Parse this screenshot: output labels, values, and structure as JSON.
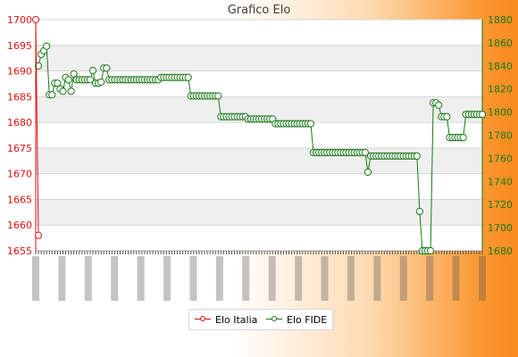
{
  "chart_data": {
    "type": "line",
    "title": "Grafico Elo",
    "xlabel": "",
    "ylabel_left": "",
    "ylabel_right": "",
    "ylim_left": [
      1655,
      1700
    ],
    "yticks_left": [
      1655,
      1660,
      1665,
      1670,
      1675,
      1680,
      1685,
      1690,
      1695,
      1700
    ],
    "ylim_right": [
      1680,
      1880
    ],
    "yticks_right": [
      1680,
      1700,
      1720,
      1740,
      1760,
      1780,
      1800,
      1820,
      1840,
      1860,
      1880
    ],
    "grid": true,
    "legend_position": "bottom",
    "n_points": 165,
    "series": [
      {
        "name": "Elo Italia",
        "axis": "left",
        "color": "#e01010",
        "points": [
          [
            0,
            1700
          ],
          [
            1,
            1658
          ]
        ]
      },
      {
        "name": "Elo FIDE",
        "axis": "right",
        "color": "#1a7a1a",
        "points": [
          [
            1,
            1840
          ],
          [
            2,
            1850
          ],
          [
            3,
            1853
          ],
          [
            4,
            1857
          ],
          [
            5,
            1815
          ],
          [
            6,
            1815
          ],
          [
            7,
            1825
          ],
          [
            8,
            1825
          ],
          [
            9,
            1820
          ],
          [
            10,
            1818
          ],
          [
            11,
            1830
          ],
          [
            12,
            1828
          ],
          [
            13,
            1818
          ],
          [
            14,
            1833
          ],
          [
            15,
            1828
          ],
          [
            16,
            1828
          ],
          [
            17,
            1828
          ],
          [
            18,
            1828
          ],
          [
            19,
            1828
          ],
          [
            20,
            1828
          ],
          [
            21,
            1836
          ],
          [
            22,
            1825
          ],
          [
            23,
            1825
          ],
          [
            24,
            1826
          ],
          [
            25,
            1838
          ],
          [
            26,
            1838
          ],
          [
            27,
            1828
          ],
          [
            28,
            1828
          ],
          [
            29,
            1828
          ],
          [
            30,
            1828
          ],
          [
            31,
            1828
          ],
          [
            32,
            1828
          ],
          [
            33,
            1828
          ],
          [
            34,
            1828
          ],
          [
            35,
            1828
          ],
          [
            36,
            1828
          ],
          [
            37,
            1828
          ],
          [
            38,
            1828
          ],
          [
            39,
            1828
          ],
          [
            40,
            1828
          ],
          [
            41,
            1828
          ],
          [
            42,
            1828
          ],
          [
            43,
            1828
          ],
          [
            44,
            1828
          ],
          [
            45,
            1828
          ],
          [
            46,
            1830
          ],
          [
            47,
            1830
          ],
          [
            48,
            1830
          ],
          [
            49,
            1830
          ],
          [
            50,
            1830
          ],
          [
            51,
            1830
          ],
          [
            52,
            1830
          ],
          [
            53,
            1830
          ],
          [
            54,
            1830
          ],
          [
            55,
            1830
          ],
          [
            56,
            1830
          ],
          [
            57,
            1814
          ],
          [
            58,
            1814
          ],
          [
            59,
            1814
          ],
          [
            60,
            1814
          ],
          [
            61,
            1814
          ],
          [
            62,
            1814
          ],
          [
            63,
            1814
          ],
          [
            64,
            1814
          ],
          [
            65,
            1814
          ],
          [
            66,
            1814
          ],
          [
            67,
            1814
          ],
          [
            68,
            1796
          ],
          [
            69,
            1796
          ],
          [
            70,
            1796
          ],
          [
            71,
            1796
          ],
          [
            72,
            1796
          ],
          [
            73,
            1796
          ],
          [
            74,
            1796
          ],
          [
            75,
            1796
          ],
          [
            76,
            1796
          ],
          [
            77,
            1796
          ],
          [
            78,
            1794
          ],
          [
            79,
            1794
          ],
          [
            80,
            1794
          ],
          [
            81,
            1794
          ],
          [
            82,
            1794
          ],
          [
            83,
            1794
          ],
          [
            84,
            1794
          ],
          [
            85,
            1794
          ],
          [
            86,
            1794
          ],
          [
            87,
            1794
          ],
          [
            88,
            1790
          ],
          [
            89,
            1790
          ],
          [
            90,
            1790
          ],
          [
            91,
            1790
          ],
          [
            92,
            1790
          ],
          [
            93,
            1790
          ],
          [
            94,
            1790
          ],
          [
            95,
            1790
          ],
          [
            96,
            1790
          ],
          [
            97,
            1790
          ],
          [
            98,
            1790
          ],
          [
            99,
            1790
          ],
          [
            100,
            1790
          ],
          [
            101,
            1790
          ],
          [
            102,
            1765
          ],
          [
            103,
            1765
          ],
          [
            104,
            1765
          ],
          [
            105,
            1765
          ],
          [
            106,
            1765
          ],
          [
            107,
            1765
          ],
          [
            108,
            1765
          ],
          [
            109,
            1765
          ],
          [
            110,
            1765
          ],
          [
            111,
            1765
          ],
          [
            112,
            1765
          ],
          [
            113,
            1765
          ],
          [
            114,
            1765
          ],
          [
            115,
            1765
          ],
          [
            116,
            1765
          ],
          [
            117,
            1765
          ],
          [
            118,
            1765
          ],
          [
            119,
            1765
          ],
          [
            120,
            1765
          ],
          [
            121,
            1765
          ],
          [
            122,
            1748
          ],
          [
            123,
            1762
          ],
          [
            124,
            1762
          ],
          [
            125,
            1762
          ],
          [
            126,
            1762
          ],
          [
            127,
            1762
          ],
          [
            128,
            1762
          ],
          [
            129,
            1762
          ],
          [
            130,
            1762
          ],
          [
            131,
            1762
          ],
          [
            132,
            1762
          ],
          [
            133,
            1762
          ],
          [
            134,
            1762
          ],
          [
            135,
            1762
          ],
          [
            136,
            1762
          ],
          [
            137,
            1762
          ],
          [
            138,
            1762
          ],
          [
            139,
            1762
          ],
          [
            140,
            1762
          ],
          [
            141,
            1714
          ],
          [
            142,
            1680
          ],
          [
            143,
            1680
          ],
          [
            144,
            1680
          ],
          [
            145,
            1680
          ],
          [
            146,
            1808
          ],
          [
            147,
            1808
          ],
          [
            148,
            1806
          ],
          [
            149,
            1796
          ],
          [
            150,
            1796
          ],
          [
            151,
            1796
          ],
          [
            152,
            1778
          ],
          [
            153,
            1778
          ],
          [
            154,
            1778
          ],
          [
            155,
            1778
          ],
          [
            156,
            1778
          ],
          [
            157,
            1778
          ],
          [
            158,
            1798
          ],
          [
            159,
            1798
          ],
          [
            160,
            1798
          ],
          [
            161,
            1798
          ],
          [
            162,
            1798
          ],
          [
            163,
            1798
          ],
          [
            164,
            1798
          ]
        ]
      }
    ]
  }
}
